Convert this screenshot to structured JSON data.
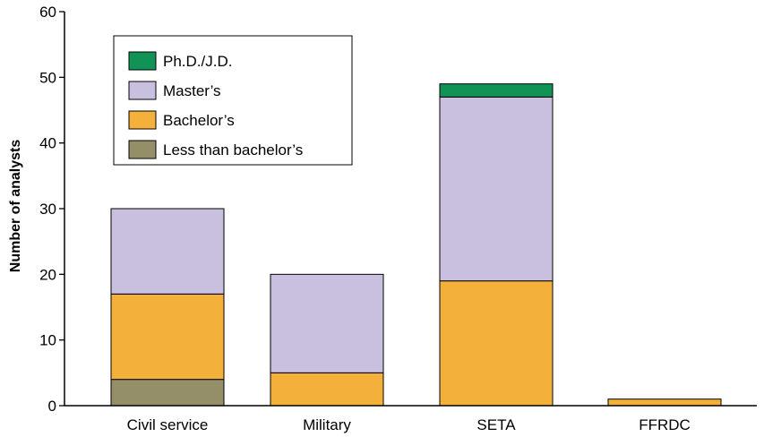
{
  "chart_data": {
    "type": "bar",
    "stacked": true,
    "categories": [
      "Civil service",
      "Military",
      "SETA",
      "FFRDC"
    ],
    "series": [
      {
        "name": "Less than bachelor’s",
        "color": "#948f68",
        "values": [
          4,
          0,
          0,
          0
        ]
      },
      {
        "name": "Bachelor’s",
        "color": "#f3b13c",
        "values": [
          13,
          5,
          19,
          1
        ]
      },
      {
        "name": "Master’s",
        "color": "#c9c0df",
        "values": [
          13,
          15,
          28,
          0
        ]
      },
      {
        "name": "Ph.D./J.D.",
        "color": "#129356",
        "values": [
          0,
          0,
          2,
          0
        ]
      }
    ],
    "title": "",
    "xlabel": "",
    "ylabel": "Number of analysts",
    "ylim": [
      0,
      60
    ],
    "yticks": [
      0,
      10,
      20,
      30,
      40,
      50,
      60
    ],
    "legend_position": "top-left",
    "legend_order": [
      "Ph.D./J.D.",
      "Master’s",
      "Bachelor’s",
      "Less than bachelor’s"
    ],
    "grid": false
  }
}
